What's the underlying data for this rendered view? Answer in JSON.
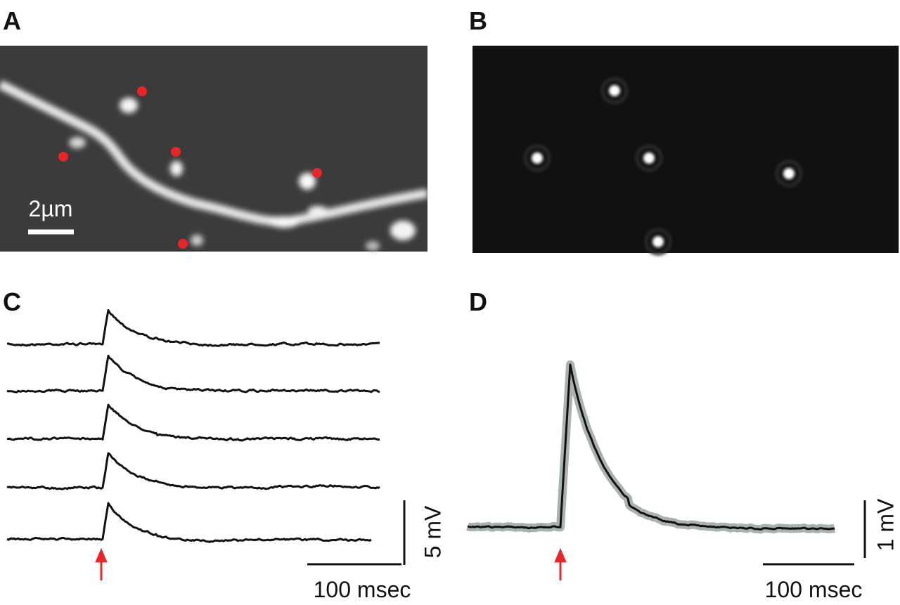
{
  "panels": [
    {
      "label": "A",
      "scale_bar": "2µm"
    },
    {
      "label": "B"
    },
    {
      "label": "C",
      "scale_x": "100 msec",
      "scale_y": "5 mV"
    },
    {
      "label": "D",
      "scale_x": "100 msec",
      "scale_y": "1 mV"
    }
  ]
}
